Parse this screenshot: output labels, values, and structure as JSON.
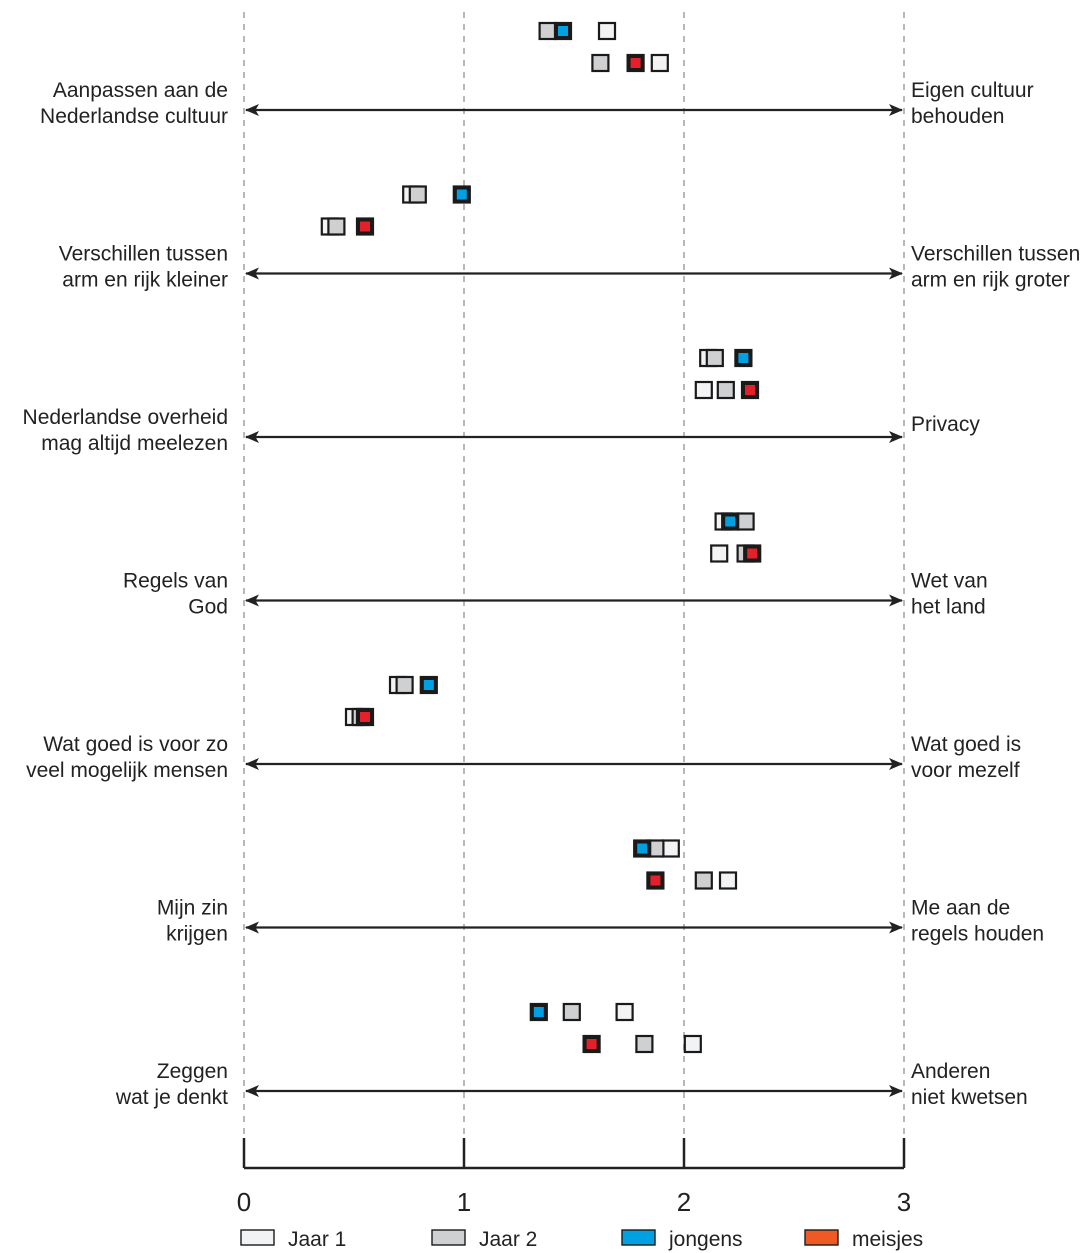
{
  "chart_data": {
    "type": "scatter",
    "title": "",
    "xlabel": "",
    "ylabel": "",
    "xlim": [
      0,
      3
    ],
    "x_ticks": [
      "0",
      "1",
      "2",
      "3"
    ],
    "grid": "vertical dashed lines at each tick",
    "legend_position": "bottom",
    "legend": [
      {
        "label": "Jaar 1",
        "fill": "#f2f3f5"
      },
      {
        "label": "Jaar 2",
        "fill": "#cfd0d2"
      },
      {
        "label": "jongens",
        "fill": "#00a0e3"
      },
      {
        "label": "meisjes",
        "fill": "#ef5a24"
      }
    ],
    "marker_style": {
      "jaar1": {
        "fill": "#f2f3f5",
        "inner": null
      },
      "jaar2": {
        "fill": "#cfd0d2",
        "inner": null
      },
      "jongens": {
        "fill": "#1a1a1a",
        "inner": "#00a0e3"
      },
      "meisjes": {
        "fill": "#1a1a1a",
        "inner": "#e4202a"
      }
    },
    "dimensions": [
      {
        "left": [
          "Aanpassen aan de",
          "Nederlandse cultuur"
        ],
        "right": [
          "Eigen cultuur",
          "behouden"
        ],
        "jongens": {
          "jaar1": 1.65,
          "jaar2": 1.38,
          "combined": 1.45
        },
        "meisjes": {
          "jaar1": 1.89,
          "jaar2": 1.62,
          "combined": 1.78
        }
      },
      {
        "left": [
          "Verschillen tussen",
          "arm en rijk kleiner"
        ],
        "right": [
          "Verschillen tussen",
          "arm en rijk groter"
        ],
        "jongens": {
          "jaar1": 0.76,
          "jaar2": 0.79,
          "combined": 0.99
        },
        "meisjes": {
          "jaar1": 0.39,
          "jaar2": 0.42,
          "combined": 0.55
        }
      },
      {
        "left": [
          "Nederlandse overheid",
          "mag altijd meelezen"
        ],
        "right": [
          "Privacy"
        ],
        "jongens": {
          "jaar1": 2.11,
          "jaar2": 2.14,
          "combined": 2.27
        },
        "meisjes": {
          "jaar1": 2.09,
          "jaar2": 2.19,
          "combined": 2.3
        }
      },
      {
        "left": [
          "Regels van",
          "God"
        ],
        "right": [
          "Wet van",
          "het land"
        ],
        "jongens": {
          "jaar1": 2.18,
          "jaar2": 2.28,
          "combined": 2.21
        },
        "meisjes": {
          "jaar1": 2.16,
          "jaar2": 2.28,
          "combined": 2.31
        }
      },
      {
        "left": [
          "Wat goed is voor zo",
          "veel mogelijk mensen"
        ],
        "right": [
          "Wat goed is",
          "voor mezelf"
        ],
        "jongens": {
          "jaar1": 0.7,
          "jaar2": 0.73,
          "combined": 0.84
        },
        "meisjes": {
          "jaar1": 0.5,
          "jaar2": 0.53,
          "combined": 0.55
        }
      },
      {
        "left": [
          "Mijn zin",
          "krijgen"
        ],
        "right": [
          "Me aan de",
          "regels houden"
        ],
        "jongens": {
          "jaar1": 1.94,
          "jaar2": 1.87,
          "combined": 1.81
        },
        "meisjes": {
          "jaar1": 2.2,
          "jaar2": 2.09,
          "combined": 1.87
        }
      },
      {
        "left": [
          "Zeggen",
          "wat je denkt"
        ],
        "right": [
          "Anderen",
          "niet kwetsen"
        ],
        "jongens": {
          "jaar1": 1.73,
          "jaar2": 1.49,
          "combined": 1.34
        },
        "meisjes": {
          "jaar1": 2.04,
          "jaar2": 1.82,
          "combined": 1.58
        }
      }
    ]
  }
}
